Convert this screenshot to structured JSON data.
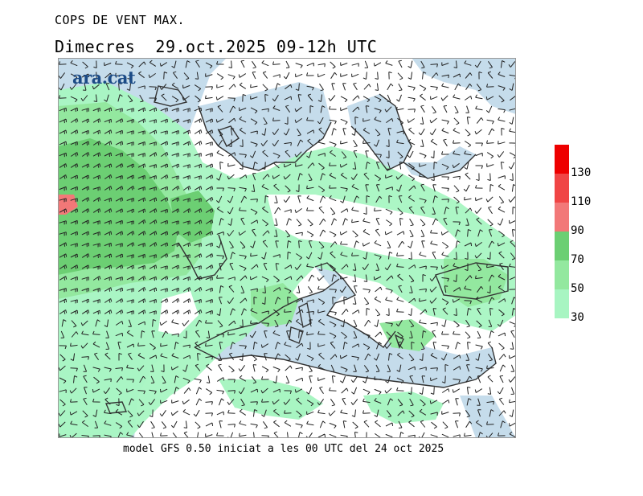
{
  "header": {
    "product_title": "COPS DE VENT MAX.",
    "date_line": "Dimecres  29.oct.2025 09-12h UTC"
  },
  "logo": {
    "text": "ara.cat"
  },
  "footer": {
    "model_note": "model GFS 0.50 iniciat a les 00 UTC del 24 oct 2025"
  },
  "legend": {
    "bins": [
      {
        "label": "30",
        "color": "#a8f5c2"
      },
      {
        "label": "50",
        "color": "#93e89f"
      },
      {
        "label": "70",
        "color": "#6ccf73"
      },
      {
        "label": "90",
        "color": "#f27878"
      },
      {
        "label": "110",
        "color": "#f04545"
      },
      {
        "label": "130",
        "color": "#ee0000"
      }
    ]
  },
  "colors": {
    "land": "#ffffff",
    "sea": "#c5dceb",
    "coast": "#333333",
    "barb": "#222222"
  }
}
